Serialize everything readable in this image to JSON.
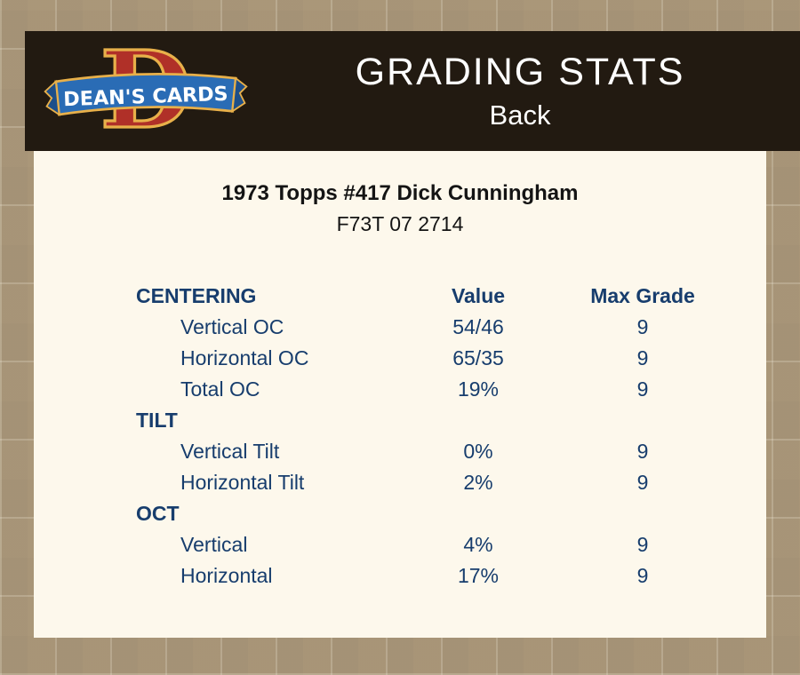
{
  "colors": {
    "page_bg": "#b19f82",
    "header_bg": "#221a11",
    "panel_bg": "#fdf8ec",
    "accent_blue": "#173d6d",
    "logo_red": "#b03028",
    "logo_gold": "#e8b04a",
    "ribbon_blue": "#2a6cb5",
    "title_text": "#ffffff",
    "body_text": "#141414"
  },
  "header": {
    "title": "GRADING STATS",
    "subtitle": "Back",
    "logo_letter": "D",
    "logo_text": "DEAN'S CARDS"
  },
  "card": {
    "title": "1973 Topps #417 Dick Cunningham",
    "code": "F73T 07 2714"
  },
  "table": {
    "value_header": "Value",
    "max_grade_header": "Max Grade",
    "sections": [
      {
        "label": "CENTERING",
        "rows": [
          {
            "label": "Vertical OC",
            "value": "54/46",
            "max_grade": "9"
          },
          {
            "label": "Horizontal OC",
            "value": "65/35",
            "max_grade": "9"
          },
          {
            "label": "Total OC",
            "value": "19%",
            "max_grade": "9"
          }
        ]
      },
      {
        "label": "TILT",
        "rows": [
          {
            "label": "Vertical Tilt",
            "value": "0%",
            "max_grade": "9"
          },
          {
            "label": "Horizontal Tilt",
            "value": "2%",
            "max_grade": "9"
          }
        ]
      },
      {
        "label": "OCT",
        "rows": [
          {
            "label": "Vertical",
            "value": "4%",
            "max_grade": "9"
          },
          {
            "label": "Horizontal",
            "value": "17%",
            "max_grade": "9"
          }
        ]
      }
    ]
  }
}
